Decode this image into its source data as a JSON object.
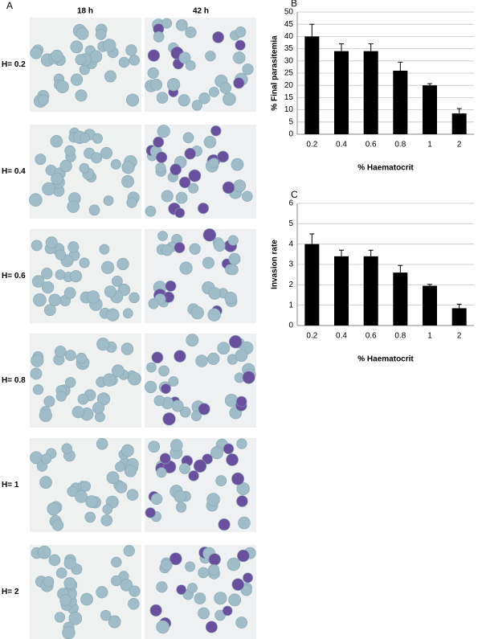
{
  "panel_a": {
    "label": "A",
    "columns": [
      "18 h",
      "42 h"
    ],
    "rows": [
      "H= 0.2",
      "H= 0.4",
      "H= 0.6",
      "H= 0.8",
      "H= 1",
      "H= 2"
    ]
  },
  "chart_data": [
    {
      "type": "bar",
      "label": "B",
      "categories": [
        "0.2",
        "0.4",
        "0.6",
        "0.8",
        "1",
        "2"
      ],
      "values": [
        40,
        34,
        34,
        26,
        20,
        8.5
      ],
      "errors": [
        5,
        3,
        3,
        3.5,
        0.7,
        2
      ],
      "color": "#000000",
      "ylim": [
        0,
        50
      ],
      "yticks": [
        0,
        5,
        10,
        15,
        20,
        25,
        30,
        35,
        40,
        45,
        50
      ],
      "grid": true,
      "y_label": "% Final parasitemia",
      "x_label": "% Haematocrit"
    },
    {
      "type": "bar",
      "label": "C",
      "categories": [
        "0.2",
        "0.4",
        "0.6",
        "0.8",
        "1",
        "2"
      ],
      "values": [
        4,
        3.4,
        3.4,
        2.6,
        1.95,
        0.85
      ],
      "errors": [
        0.5,
        0.3,
        0.3,
        0.35,
        0.07,
        0.2
      ],
      "color": "#000000",
      "ylim": [
        0,
        6
      ],
      "yticks": [
        0,
        1,
        2,
        3,
        4,
        5,
        6
      ],
      "grid": true,
      "y_label": "Invasion rate",
      "x_label": "% Haematocrit"
    }
  ]
}
